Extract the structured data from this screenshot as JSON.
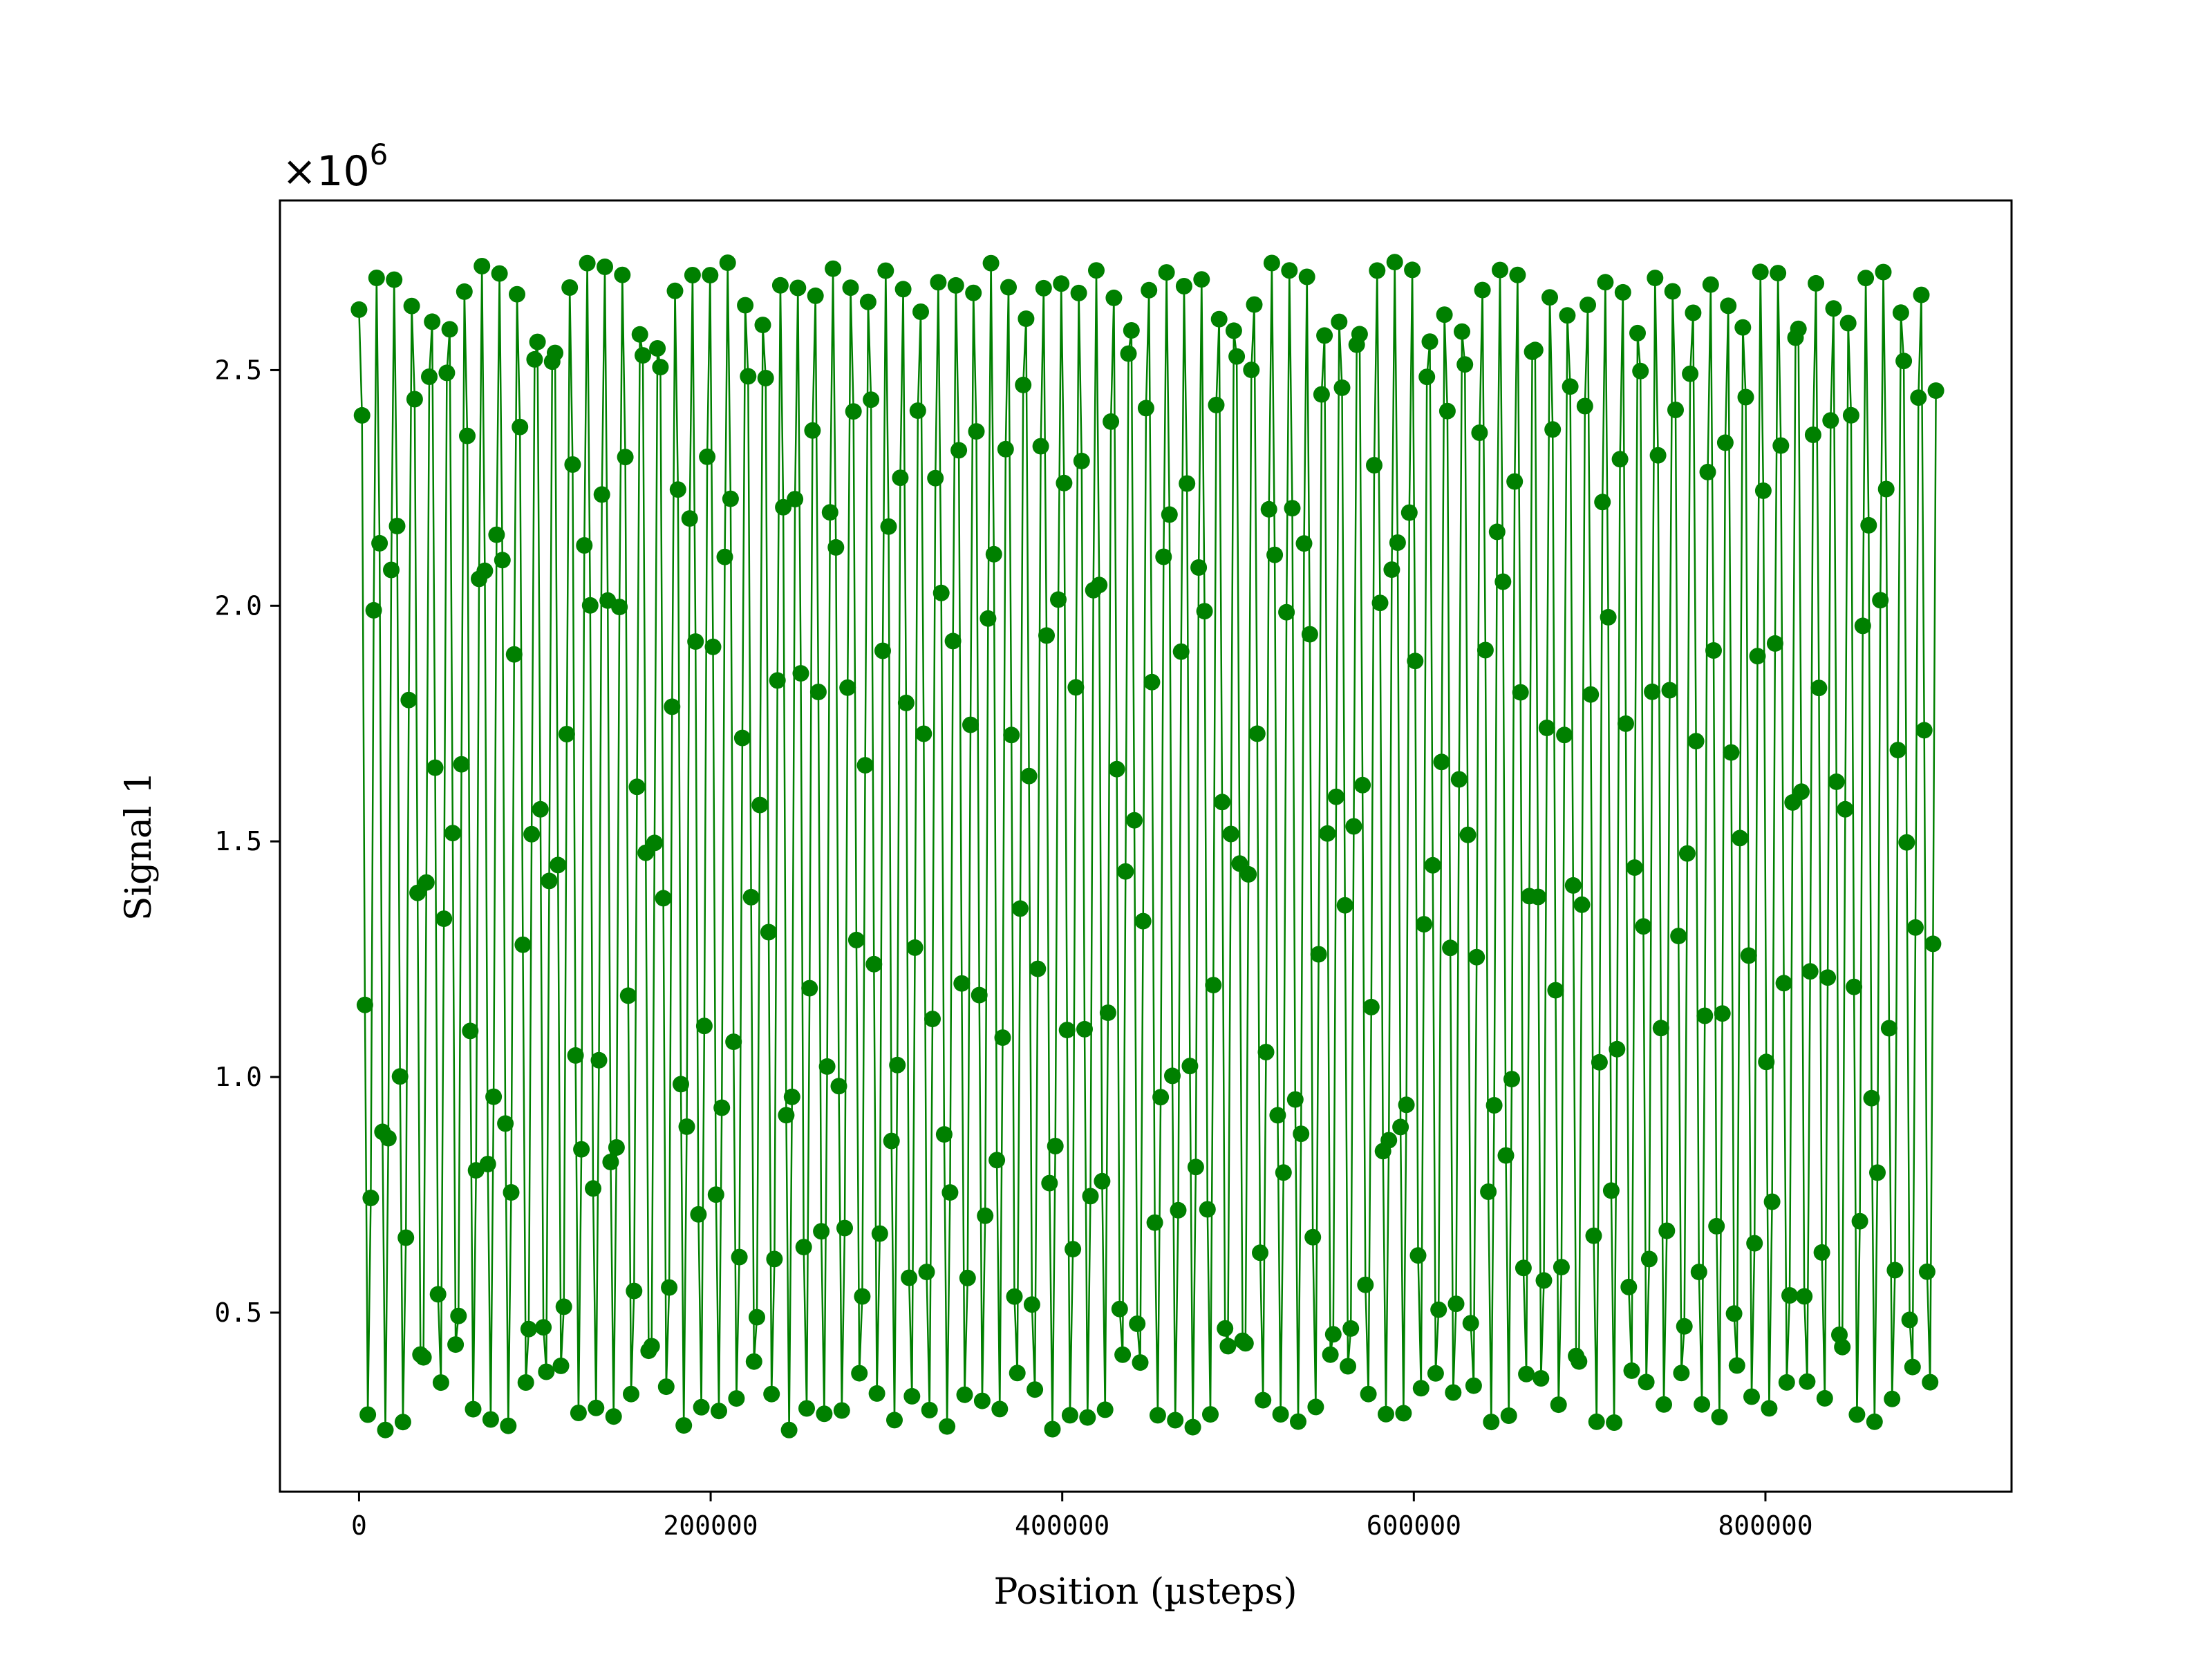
{
  "chart_data": {
    "type": "line",
    "title": "",
    "xlabel": "Position (µsteps)",
    "ylabel": "Signal 1",
    "y_multiplier_label": "×10",
    "y_multiplier_exponent": "6",
    "xlim": [
      -45000,
      940000
    ],
    "ylim": [
      0.12,
      2.86
    ],
    "x_ticks": [
      0,
      200000,
      400000,
      600000,
      800000
    ],
    "x_tick_labels": [
      "0",
      "200000",
      "400000",
      "600000",
      "800000"
    ],
    "y_ticks": [
      0.5,
      1.0,
      1.5,
      2.0,
      2.5
    ],
    "y_tick_labels": [
      "0.5",
      "1.0",
      "1.5",
      "2.0",
      "2.5"
    ],
    "grid": false,
    "series": [
      {
        "color": "#008000",
        "marker": "circle",
        "x_start": 0,
        "x_end": 897000,
        "y_min": 0.25,
        "y_max": 2.73,
        "cycles": 90,
        "num_points": 540
      }
    ]
  }
}
